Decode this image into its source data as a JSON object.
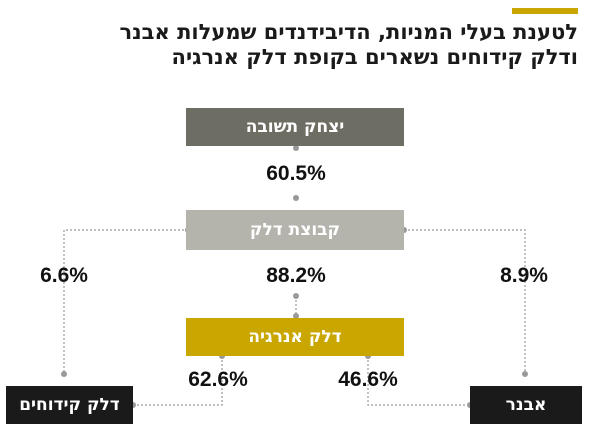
{
  "title": {
    "line1": "לטענת בעלי המניות, הדיבידנדים שמעלות אבנר",
    "line2": "ודלק קידוחים נשארים בקופת דלק אנרגיה"
  },
  "nodes": {
    "yitzhak": {
      "label": "יצחק תשובה",
      "bg": "#6e6d63",
      "fg": "#ffffff"
    },
    "delek_group": {
      "label": "קבוצת דלק",
      "bg": "#b5b4ac",
      "fg": "#ffffff"
    },
    "delek_energy": {
      "label": "דלק אנרגיה",
      "bg": "#c9a600",
      "fg": "#ffffff"
    },
    "delek_drilling": {
      "label": "דלק קידוחים",
      "bg": "#1a1a1a",
      "fg": "#ffffff"
    },
    "avner": {
      "label": "אבנר",
      "bg": "#1a1a1a",
      "fg": "#ffffff"
    }
  },
  "percentages": {
    "yitzhak_to_group": "60.5%",
    "group_to_energy": "88.2%",
    "group_to_drilling": "6.6%",
    "group_to_avner": "8.9%",
    "energy_to_drilling": "62.6%",
    "energy_to_avner": "46.6%"
  },
  "colors": {
    "accent": "#c9a600",
    "connector": "#999999",
    "text": "#111111"
  }
}
